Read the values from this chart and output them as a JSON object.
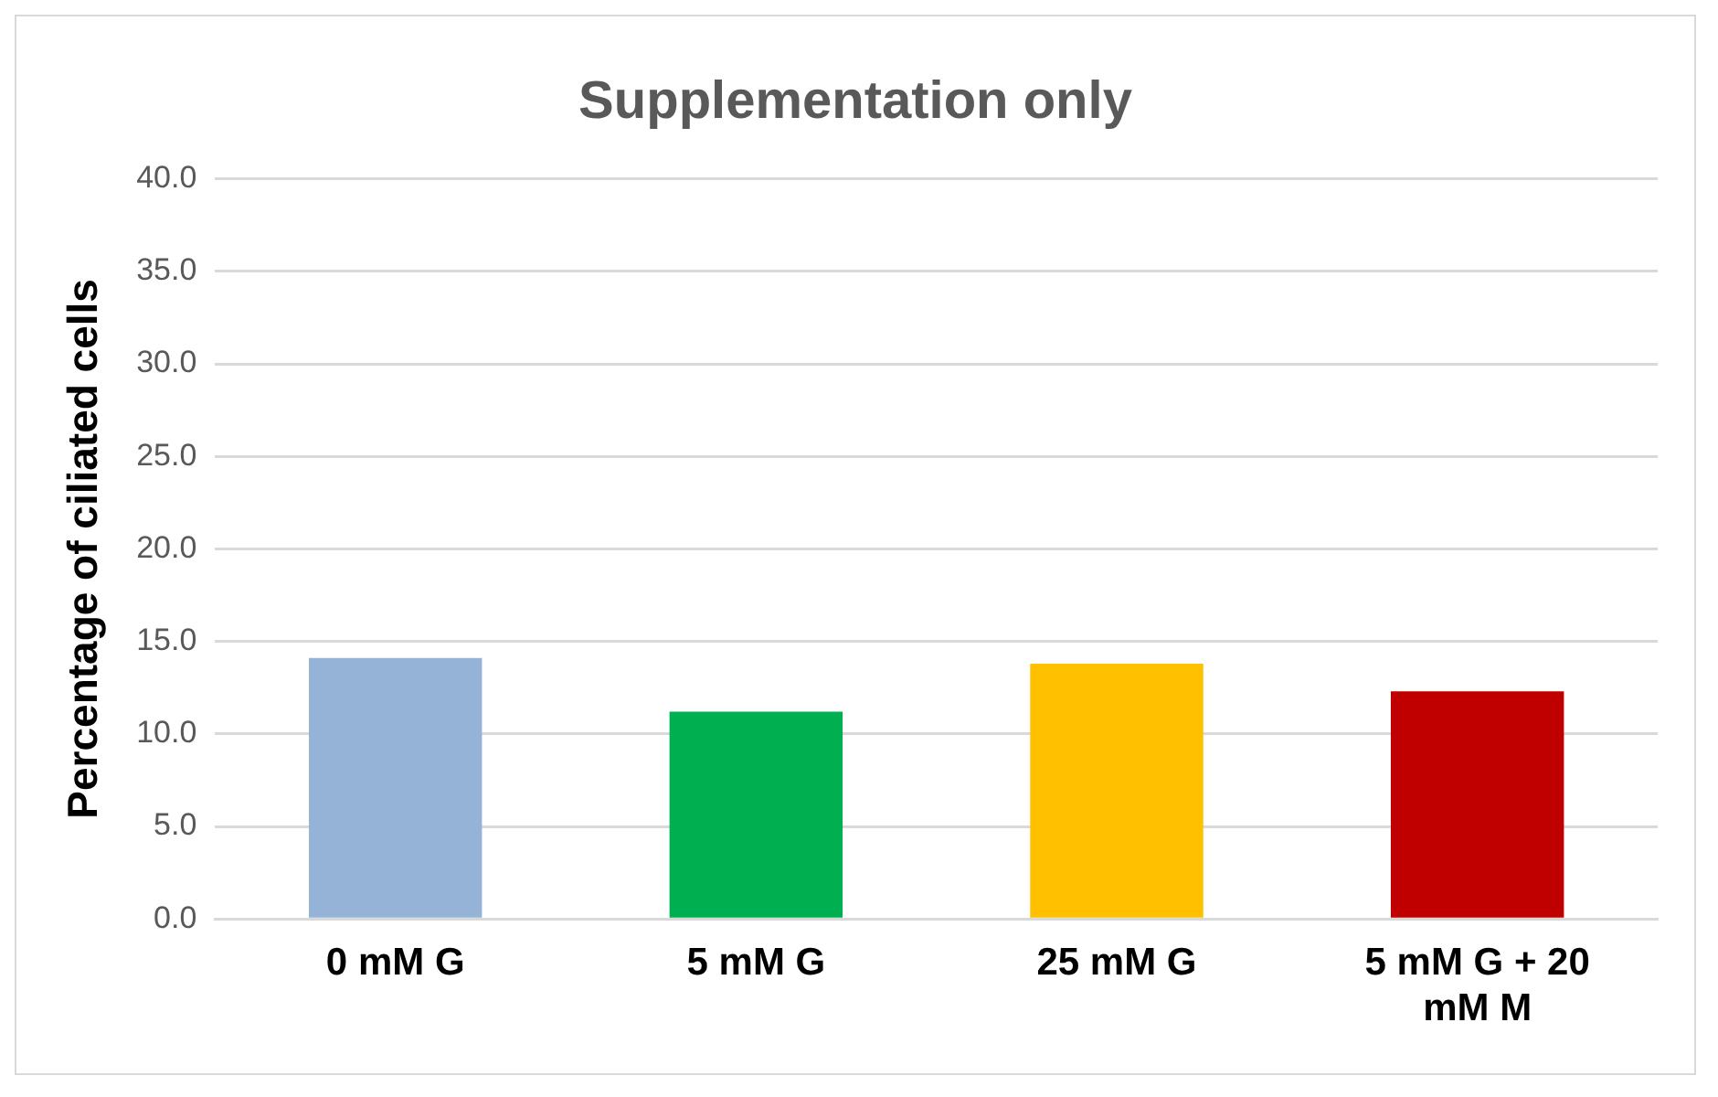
{
  "chart_data": {
    "type": "bar",
    "title": "Supplementation only",
    "ylabel": "Percentage of ciliated cells",
    "categories": [
      "0 mM G",
      "5 mM G",
      "25 mM G",
      "5 mM G + 20 mM M"
    ],
    "values": [
      14.1,
      11.2,
      13.8,
      12.3
    ],
    "colors": [
      "#95b3d7",
      "#00b050",
      "#ffc000",
      "#c00000"
    ],
    "ylim": [
      0,
      40
    ],
    "yticks": [
      {
        "value": 0,
        "label": "0.0"
      },
      {
        "value": 5,
        "label": "5.0"
      },
      {
        "value": 10,
        "label": "10.0"
      },
      {
        "value": 15,
        "label": "15.0"
      },
      {
        "value": 20,
        "label": "20.0"
      },
      {
        "value": 25,
        "label": "25.0"
      },
      {
        "value": 30,
        "label": "30.0"
      },
      {
        "value": 35,
        "label": "35.0"
      },
      {
        "value": 40,
        "label": "40.0"
      }
    ],
    "grid": "y",
    "legend": false
  }
}
